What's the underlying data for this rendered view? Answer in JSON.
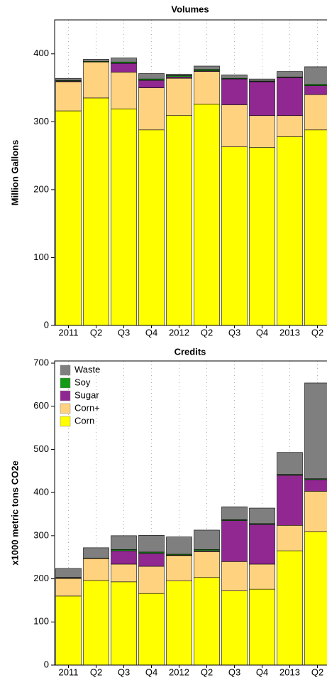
{
  "chart_data": [
    {
      "type": "bar",
      "stacked": true,
      "title": "Volumes",
      "ylabel": "Million Gallons",
      "categories": [
        "2011",
        "Q2",
        "Q3",
        "Q4",
        "2012",
        "Q2",
        "Q3",
        "Q4",
        "2013",
        "Q2"
      ],
      "series": [
        {
          "name": "Corn",
          "color": "#ffff00",
          "values": [
            316,
            335,
            319,
            288,
            309,
            326,
            263,
            262,
            278,
            288
          ]
        },
        {
          "name": "Corn+",
          "color": "#ffd280",
          "values": [
            43,
            53,
            54,
            62,
            55,
            48,
            62,
            47,
            31,
            52
          ]
        },
        {
          "name": "Sugar",
          "color": "#912891",
          "values": [
            1,
            0,
            13,
            11,
            2,
            1,
            38,
            50,
            56,
            13
          ]
        },
        {
          "name": "Soy",
          "color": "#159a15",
          "values": [
            1,
            1,
            2,
            2,
            2,
            2,
            1,
            1,
            1,
            2
          ]
        },
        {
          "name": "Waste",
          "color": "#7f7f7f",
          "values": [
            3,
            3,
            6,
            8,
            2,
            5,
            5,
            3,
            8,
            26
          ]
        }
      ],
      "ylim": [
        0,
        450
      ],
      "yticks": [
        0,
        100,
        200,
        300,
        400
      ],
      "grid": true
    },
    {
      "type": "bar",
      "stacked": true,
      "title": "Credits",
      "ylabel": "x1000 metric tons CO2e",
      "categories": [
        "2011",
        "Q2",
        "Q3",
        "Q4",
        "2012",
        "Q2",
        "Q3",
        "Q4",
        "2013",
        "Q2"
      ],
      "series": [
        {
          "name": "Corn",
          "color": "#ffff00",
          "values": [
            160,
            196,
            193,
            166,
            195,
            203,
            172,
            176,
            265,
            309
          ]
        },
        {
          "name": "Corn+",
          "color": "#ffd280",
          "values": [
            41,
            51,
            41,
            63,
            59,
            60,
            68,
            58,
            59,
            94
          ]
        },
        {
          "name": "Sugar",
          "color": "#912891",
          "values": [
            1,
            0,
            31,
            30,
            1,
            2,
            95,
            92,
            116,
            27
          ]
        },
        {
          "name": "Soy",
          "color": "#159a15",
          "values": [
            1,
            1,
            3,
            3,
            2,
            3,
            2,
            2,
            2,
            2
          ]
        },
        {
          "name": "Waste",
          "color": "#7f7f7f",
          "values": [
            21,
            24,
            32,
            39,
            40,
            45,
            30,
            36,
            51,
            222
          ]
        }
      ],
      "ylim": [
        0,
        705
      ],
      "yticks": [
        0,
        100,
        200,
        300,
        400,
        500,
        600,
        700
      ],
      "grid": true,
      "legend": "upper left"
    }
  ]
}
